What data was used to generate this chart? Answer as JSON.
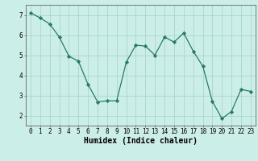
{
  "x": [
    0,
    1,
    2,
    3,
    4,
    5,
    6,
    7,
    8,
    9,
    10,
    11,
    12,
    13,
    14,
    15,
    16,
    17,
    18,
    19,
    20,
    21,
    22,
    23
  ],
  "y": [
    7.1,
    6.85,
    6.55,
    5.9,
    4.95,
    4.7,
    3.55,
    2.68,
    2.73,
    2.73,
    4.65,
    5.5,
    5.45,
    5.0,
    5.9,
    5.65,
    6.1,
    5.2,
    4.45,
    2.7,
    1.85,
    2.2,
    3.3,
    3.2
  ],
  "line_color": "#2a7a65",
  "marker": "D",
  "markersize": 2.2,
  "linewidth": 0.9,
  "bg_color": "#cceee8",
  "grid_color": "#aad4ce",
  "xlabel": "Humidex (Indice chaleur)",
  "xlabel_fontsize": 7,
  "xlim": [
    -0.5,
    23.5
  ],
  "ylim": [
    1.5,
    7.5
  ],
  "yticks": [
    2,
    3,
    4,
    5,
    6,
    7
  ],
  "xticks": [
    0,
    1,
    2,
    3,
    4,
    5,
    6,
    7,
    8,
    9,
    10,
    11,
    12,
    13,
    14,
    15,
    16,
    17,
    18,
    19,
    20,
    21,
    22,
    23
  ],
  "tick_fontsize": 5.5,
  "spine_color": "#666666"
}
